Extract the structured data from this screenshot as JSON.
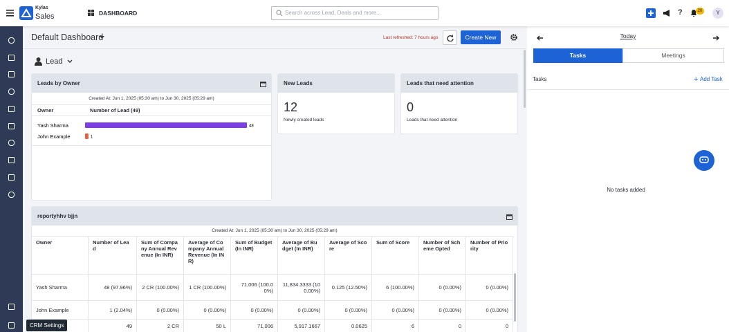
{
  "header": {
    "brand_small": "Kylas",
    "brand": "Sales",
    "section": "DASHBOARD",
    "search_placeholder": "Search across Lead, Deals and more...",
    "notification_count": "20",
    "avatar": "Y"
  },
  "dashboard": {
    "title": "Default Dashboard",
    "last_refreshed": "Last refreshed: 7 hours ago",
    "create_button": "Create New",
    "entity": "Lead"
  },
  "leads_by_owner": {
    "title": "Leads by Owner",
    "created_at": "Created At: Jun 1, 2025 (05:30 am) to Jun 30, 2025 (05:29 am)",
    "columns": [
      "Owner",
      "Number of Lead (49)"
    ],
    "owners": [
      "Yash Sharma",
      "John Example"
    ],
    "values": [
      48,
      1
    ],
    "colors": [
      "#7b3fe4",
      "#e5603f"
    ]
  },
  "new_leads": {
    "title": "New Leads",
    "value": "12",
    "caption": "Newly created leads"
  },
  "attention": {
    "title": "Leads that need attention",
    "value": "0",
    "caption": "Leads that need attention"
  },
  "report": {
    "title": "reportyhhv bjjn",
    "created_at": "Created At: Jun 1, 2025 (05:30 am) to Jun 30, 2025 (05:29 am)",
    "columns": [
      "Owner",
      "Number of Lead",
      "Sum of Company Annual Revenue (In INR)",
      "Average of Company Annual Revenue (In INR)",
      "Sum of Budget (In INR)",
      "Average of Budget (In INR)",
      "Average of Score",
      "Sum of Score",
      "Number of Scheme Opted",
      "Number of Priority"
    ],
    "rows": [
      [
        "Yash Sharma",
        "48 (97.96%)",
        "2 CR (100.00%)",
        "1 CR (100.00%)",
        "71,006 (100.00%)",
        "11,834.3333 (100.00%)",
        "0.125 (12.50%)",
        "6 (100.00%)",
        "0 (0.00%)",
        "0 (0.00%)"
      ],
      [
        "John Example",
        "1 (2.04%)",
        "0 (0.00%)",
        "0 (0.00%)",
        "0 (0.00%)",
        "0 (0.00%)",
        "0 (0.00%)",
        "0 (0.00%)",
        "0 (0.00%)",
        "0 (0.00%)"
      ],
      [
        null,
        "49",
        "2 CR",
        "50 L",
        "71,006",
        "5,917.1667",
        "0.0625",
        "6",
        "0",
        "0"
      ]
    ]
  },
  "side_panel": {
    "date": "Today",
    "tabs": [
      "Tasks",
      "Meetings"
    ],
    "section": "Tasks",
    "add_task": "Add Task",
    "empty": "No tasks added"
  },
  "tooltip": "CRM Settings"
}
